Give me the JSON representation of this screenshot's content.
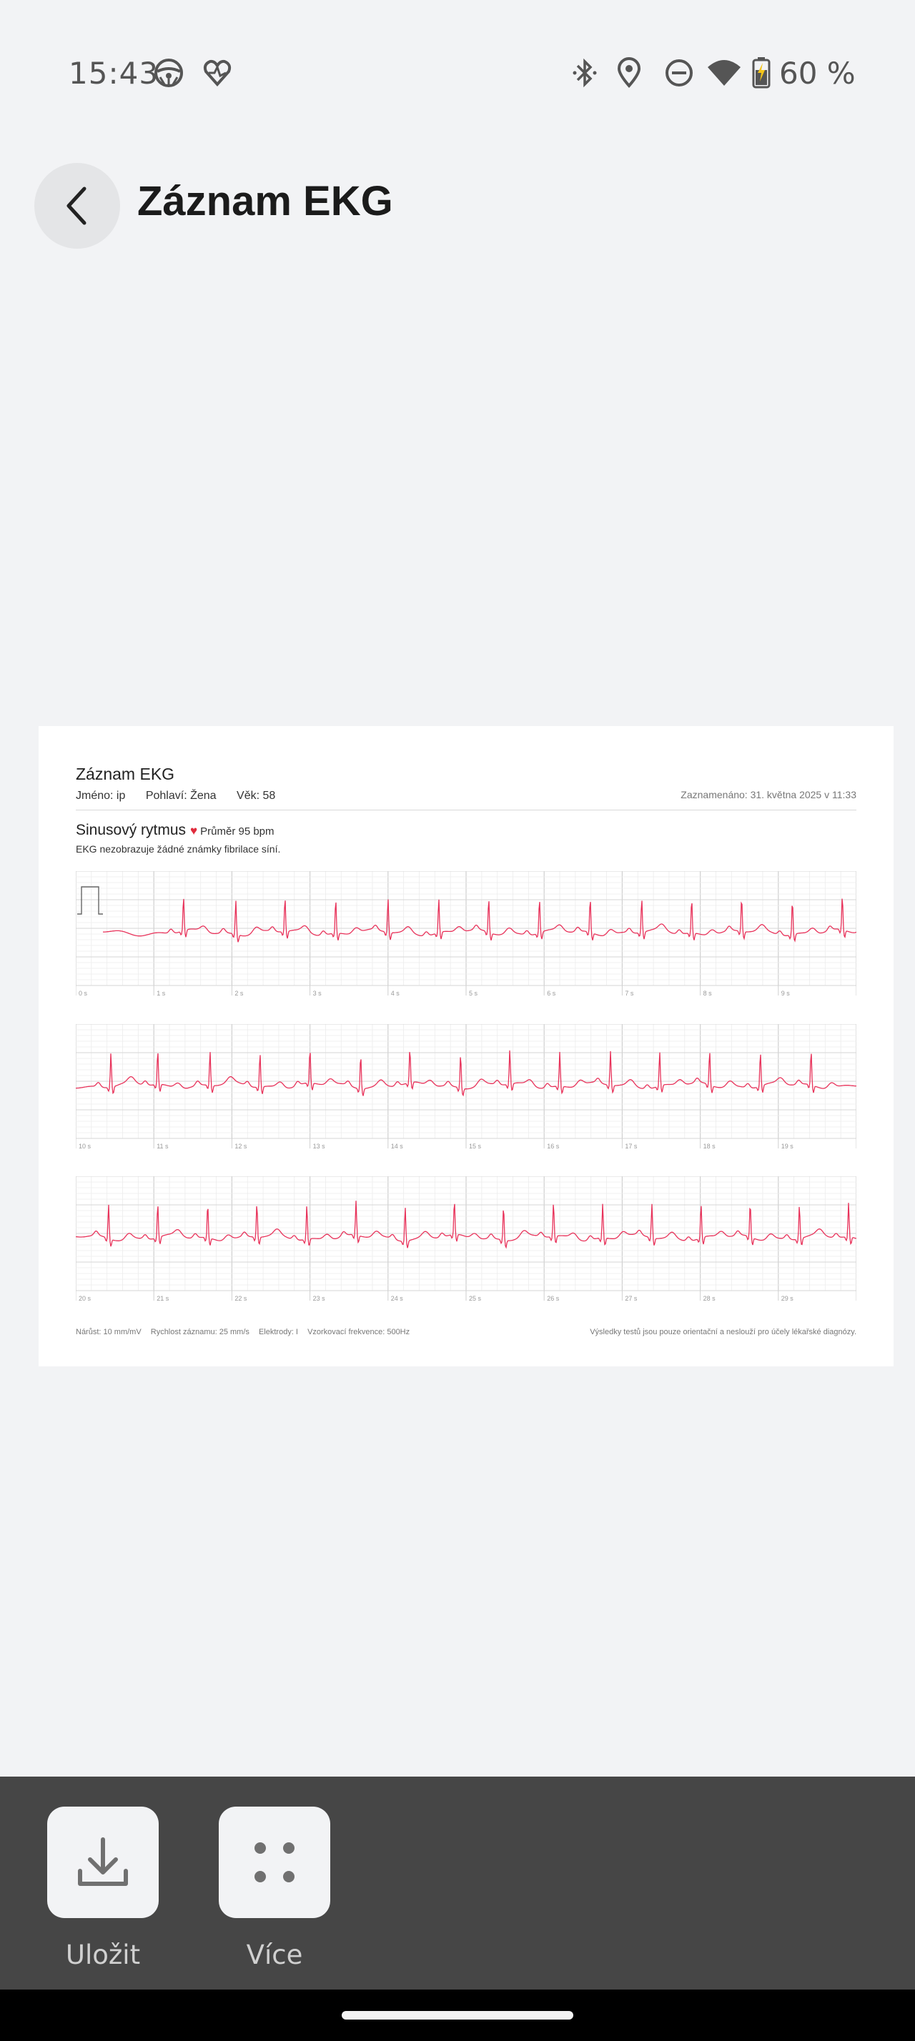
{
  "status_bar": {
    "time": "15:43",
    "battery_text": "60 %",
    "icons": [
      "steering-wheel-icon",
      "health-heart-icon",
      "bluetooth-icon",
      "location-icon",
      "do-not-disturb-icon",
      "wifi-icon",
      "battery-charging-icon"
    ]
  },
  "header": {
    "title": "Záznam EKG",
    "back_icon": "chevron-left-icon"
  },
  "report": {
    "title": "Záznam EKG",
    "name": "Jméno: ip",
    "gender": "Pohlaví: Žena",
    "age": "Věk: 58",
    "recorded": "Zaznamenáno: 31. května 2025 v 11:33",
    "rhythm": "Sinusový rytmus",
    "heart_icon": "heart-icon",
    "average": "Průměr 95 bpm",
    "no_afib": "EKG nezobrazuje žádné známky fibrilace síní.",
    "footer": {
      "gain": "Nárůst: 10 mm/mV",
      "speed": "Rychlost záznamu: 25 mm/s",
      "electrodes": "Elektrody: I",
      "sampling": "Vzorkovací frekvence: 500Hz",
      "disclaimer": "Výsledky testů jsou pouze orientační a neslouží pro účely lékařské diagnózy."
    },
    "trace_color": "#e8325a"
  },
  "chart_data": {
    "type": "line",
    "title": "",
    "xlabel": "",
    "ylabel": "",
    "strips": [
      {
        "ticks": [
          "0 s",
          "1 s",
          "2 s",
          "3 s",
          "4 s",
          "5 s",
          "6 s",
          "7 s",
          "8 s",
          "9 s"
        ],
        "x_range": [
          0,
          10
        ],
        "beats_s": [
          1.38,
          2.05,
          2.68,
          3.33,
          4.0,
          4.65,
          5.29,
          5.94,
          6.59,
          7.25,
          7.89,
          8.53,
          9.18,
          9.82
        ],
        "has_calibration": true
      },
      {
        "ticks": [
          "10 s",
          "11 s",
          "12 s",
          "13 s",
          "14 s",
          "15 s",
          "16 s",
          "17 s",
          "18 s",
          "19 s"
        ],
        "x_range": [
          10,
          20
        ],
        "beats_s": [
          10.45,
          11.05,
          11.72,
          12.36,
          13.0,
          13.65,
          14.28,
          14.93,
          15.56,
          16.2,
          16.85,
          17.48,
          18.12,
          18.77,
          19.42
        ],
        "has_calibration": false
      },
      {
        "ticks": [
          "20 s",
          "21 s",
          "22 s",
          "23 s",
          "24 s",
          "25 s",
          "26 s",
          "27 s",
          "28 s",
          "29 s"
        ],
        "x_range": [
          20,
          30
        ],
        "beats_s": [
          20.42,
          21.05,
          21.69,
          22.32,
          22.96,
          23.59,
          24.22,
          24.85,
          25.48,
          26.12,
          26.75,
          27.38,
          28.01,
          28.64,
          29.27,
          29.9
        ],
        "has_calibration": false
      }
    ],
    "grid": true,
    "series": [
      {
        "name": "",
        "color": "#e8325a"
      }
    ]
  },
  "actions": [
    {
      "label": "Uložit",
      "icon": "download-icon"
    },
    {
      "label": "Více",
      "icon": "more-dots-icon"
    }
  ]
}
